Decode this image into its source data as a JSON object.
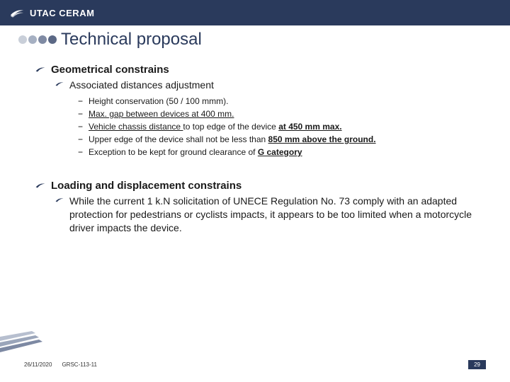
{
  "header": {
    "brand": "UTAC CERAM"
  },
  "title": "Technical proposal",
  "dots": [
    "#c9cfd9",
    "#a6b0c2",
    "#7f8aa3",
    "#5b6885"
  ],
  "swoosh_color": "#ffffff",
  "sections": {
    "s1": {
      "heading": "Geometrical constrains",
      "sub": "Associated distances adjustment",
      "items": [
        {
          "text": "Height conservation (50 / 100 mmm)."
        },
        {
          "html": "<span class='underline'>Max. gap between devices at 400 mm.</span>"
        },
        {
          "html": "<span class='underline'>Vehicle chassis distance </span>to top edge of the device <span class='underline bold'>at 450 mm max.</span>"
        },
        {
          "html": "Upper edge of the device shall not be less than <span class='underline bold'>850 mm above the ground.</span>"
        },
        {
          "html": "Exception to be kept for ground clearance of <span class='underline bold'>G category</span>"
        }
      ]
    },
    "s2": {
      "heading": "Loading and displacement constrains",
      "sub": "While the current 1 k.N solicitation of UNECE Regulation No. 73 comply with an adapted protection for pedestrians or cyclists impacts, it appears to be too limited when a motorcycle driver impacts the device."
    }
  },
  "footer": {
    "date": "26/11/2020",
    "ref": "GRSC-113-11",
    "page": "29"
  },
  "colors": {
    "brand": "#2a3a5c",
    "stripe1": "#b7bfcf",
    "stripe2": "#9aa5ba",
    "stripe3": "#7d89a3"
  }
}
